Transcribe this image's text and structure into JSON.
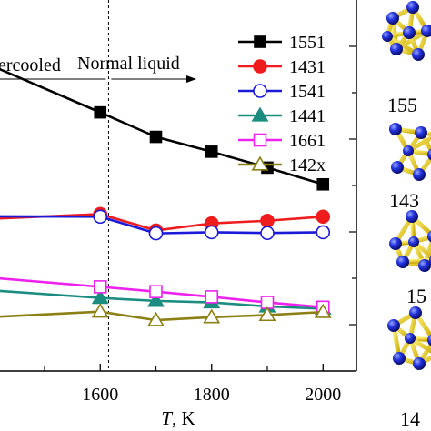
{
  "annotations": {
    "supercooled": "ercooled",
    "normal_liquid": "Normal liquid"
  },
  "chart_data": {
    "type": "line",
    "title": "",
    "xlabel_italic": "T",
    "xlabel_unit": ", K",
    "ylabel": "",
    "xlim": [
      1420,
      2060
    ],
    "ylim": [
      0,
      1
    ],
    "x_ticks": [
      1600,
      1800,
      2000
    ],
    "divider_x": 1615,
    "grid": false,
    "legend_position": "top-right",
    "series": [
      {
        "name": "1551",
        "color": "#000000",
        "marker": "square-filled",
        "x": [
          1400,
          1600,
          1700,
          1800,
          1900,
          2000
        ],
        "values": [
          0.826,
          0.697,
          0.631,
          0.591,
          0.548,
          0.503
        ]
      },
      {
        "name": "1431",
        "color": "#ee1c1c",
        "marker": "circle-filled",
        "x": [
          1400,
          1600,
          1700,
          1800,
          1900,
          2000
        ],
        "values": [
          0.41,
          0.423,
          0.379,
          0.398,
          0.405,
          0.416
        ]
      },
      {
        "name": "1541",
        "color": "#1a1ad8",
        "marker": "circle-open",
        "x": [
          1400,
          1600,
          1700,
          1800,
          1900,
          2000
        ],
        "values": [
          0.417,
          0.416,
          0.371,
          0.374,
          0.372,
          0.374
        ]
      },
      {
        "name": "1441",
        "color": "#1a8c80",
        "marker": "triangle-filled",
        "x": [
          1400,
          1600,
          1700,
          1800,
          1900,
          2000
        ],
        "values": [
          0.218,
          0.197,
          0.189,
          0.185,
          0.174,
          0.168
        ]
      },
      {
        "name": "1661",
        "color": "#ee22ee",
        "marker": "square-open",
        "x": [
          1400,
          1600,
          1700,
          1800,
          1900,
          2000
        ],
        "values": [
          0.252,
          0.227,
          0.214,
          0.2,
          0.185,
          0.172
        ]
      },
      {
        "name": "142x",
        "color": "#8c8014",
        "marker": "triangle-open",
        "x": [
          1400,
          1600,
          1700,
          1800,
          1900,
          2000
        ],
        "values": [
          0.145,
          0.16,
          0.137,
          0.145,
          0.151,
          0.159
        ]
      }
    ]
  },
  "cluster_labels": [
    "155",
    "143",
    "15",
    "14"
  ]
}
